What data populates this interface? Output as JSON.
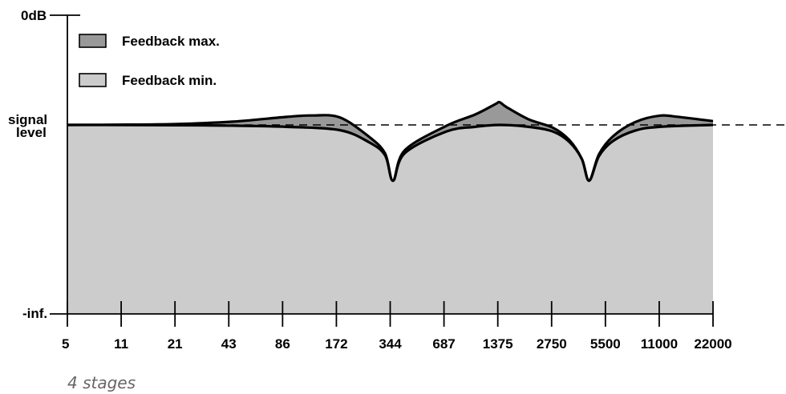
{
  "chart_data": {
    "type": "area",
    "title": "",
    "xlabel": "",
    "ylabel": "",
    "x_scale": "log",
    "x_ticks": [
      "5",
      "11",
      "21",
      "43",
      "86",
      "172",
      "344",
      "687",
      "1375",
      "2750",
      "5500",
      "11000",
      "22000"
    ],
    "y_labels": {
      "top": "0dB",
      "signal_line1": "signal",
      "signal_line2": "level",
      "bottom": "-inf."
    },
    "legend": {
      "placement": "top-left",
      "entries": [
        "Feedback max.",
        "Feedback min."
      ]
    },
    "notches_hz": [
      344,
      4400
    ],
    "peaks_hz": [
      1375
    ],
    "series": [
      {
        "name": "Feedback max.",
        "color": "#999999",
        "hz": [
          5,
          11,
          21,
          43,
          86,
          120,
          172,
          250,
          310,
          344,
          400,
          687,
          1000,
          1300,
          1375,
          1500,
          2000,
          2750,
          3400,
          4000,
          4400,
          5000,
          6000,
          8000,
          11000,
          14000,
          22000
        ],
        "relative_level": [
          0.0,
          0.03,
          0.1,
          0.35,
          0.85,
          1.0,
          0.8,
          -1.2,
          -3.0,
          -5.9,
          -2.7,
          -0.1,
          1.1,
          2.2,
          2.4,
          1.9,
          0.6,
          -0.3,
          -1.6,
          -3.6,
          -5.9,
          -3.1,
          -1.2,
          0.3,
          0.98,
          0.85,
          0.4
        ]
      },
      {
        "name": "Feedback min.",
        "color": "#cccccc",
        "hz": [
          5,
          11,
          21,
          43,
          86,
          172,
          250,
          310,
          344,
          400,
          687,
          1000,
          1375,
          2000,
          2750,
          3400,
          4000,
          4400,
          5000,
          6000,
          8000,
          11000,
          22000
        ],
        "relative_level": [
          0.0,
          -0.01,
          -0.03,
          -0.08,
          -0.2,
          -0.55,
          -1.8,
          -3.2,
          -5.9,
          -3.0,
          -0.7,
          -0.2,
          0.0,
          -0.2,
          -0.7,
          -1.8,
          -3.6,
          -5.9,
          -3.3,
          -1.7,
          -0.6,
          -0.2,
          0.0
        ]
      }
    ],
    "signal_level_line": "dashed"
  },
  "caption": "4 stages"
}
